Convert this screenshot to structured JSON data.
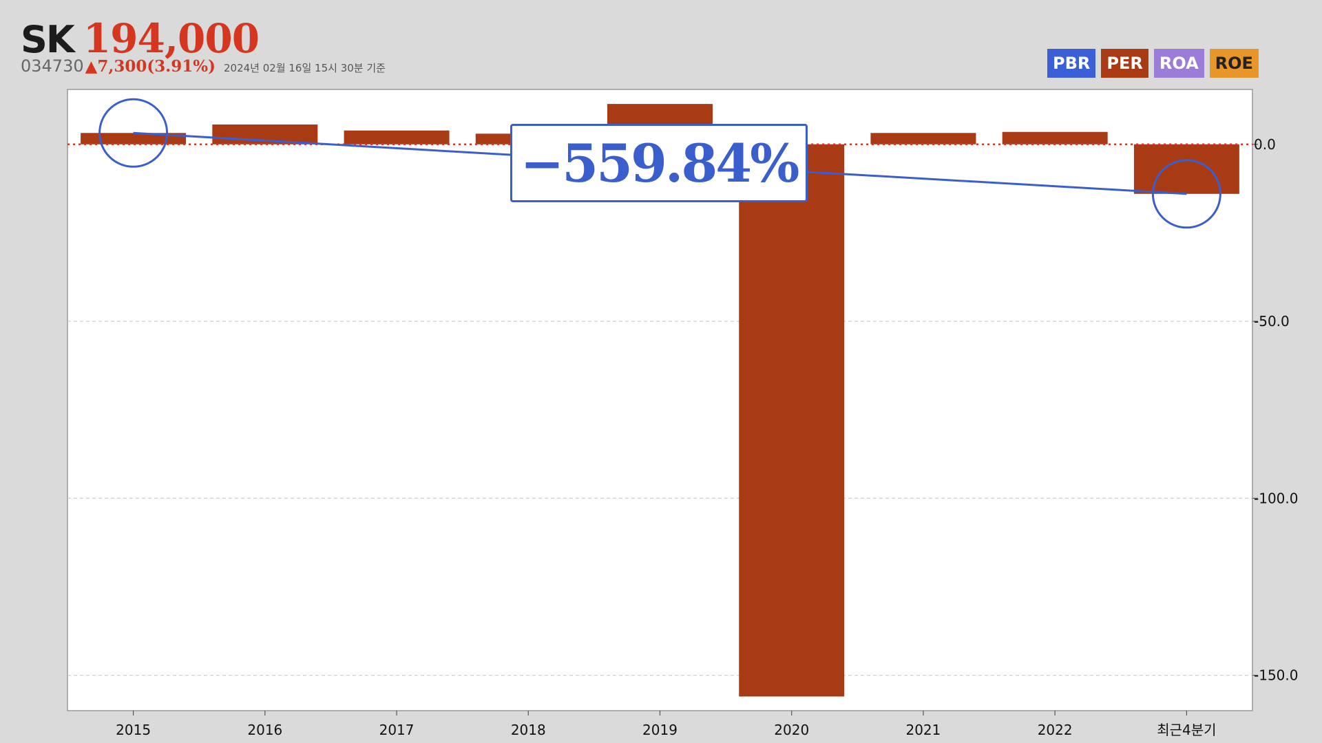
{
  "header": {
    "name": "SK",
    "price": "194,000",
    "code": "034730",
    "change": "▲7,300(3.91%)",
    "timestamp": "2024년 02월 16일 15시 30분 기준"
  },
  "legend": [
    {
      "label": "PBR",
      "color": "#3b5fd6"
    },
    {
      "label": "PER",
      "color": "#a83a14"
    },
    {
      "label": "ROA",
      "color": "#9b7cd6"
    },
    {
      "label": "ROE",
      "color": "#e8962a"
    }
  ],
  "colors": {
    "bar": "#a83a14",
    "highlight": "#3a5fcd",
    "zero_line": "#d33a2a",
    "grid": "#cccccc"
  },
  "callout": {
    "text": "−559.84%"
  },
  "chart_data": {
    "type": "bar",
    "categories": [
      "2015",
      "2016",
      "2017",
      "2018",
      "2019",
      "2020",
      "2021",
      "2022",
      "최근4분기"
    ],
    "series": [
      {
        "values": [
          3.2,
          5.6,
          3.9,
          3.0,
          11.4,
          -156.0,
          3.2,
          3.5,
          -14.0
        ]
      }
    ],
    "ylim": [
      -160,
      15.5
    ],
    "yticks": [
      0,
      -50,
      -100,
      -150
    ],
    "ytick_labels": [
      "0.0",
      "-50.0",
      "-100.0",
      "-150.0"
    ],
    "grid": "horizontal dashed",
    "zero_line": "dotted red",
    "highlight_points": [
      "2015",
      "최근4분기"
    ]
  }
}
